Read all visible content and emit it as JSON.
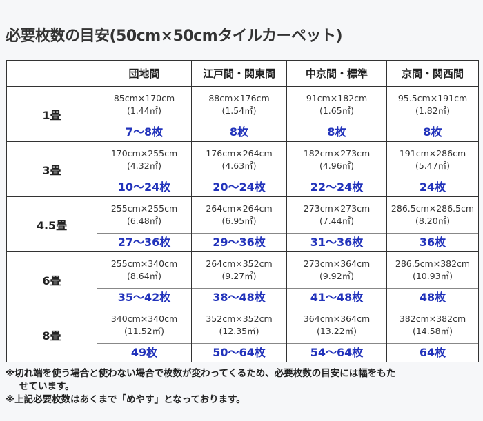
{
  "title": "必要枚数の目安(50cm×50cmタイルカーペット)",
  "columns": [
    "",
    "団地間",
    "江戸間・関東間",
    "中京間・標準",
    "京間・関西間"
  ],
  "rows": [
    {
      "label": "1畳",
      "cells": [
        {
          "size": "85cm×170cm",
          "area": "(1.44㎡)",
          "count": "7～8枚"
        },
        {
          "size": "88cm×176cm",
          "area": "(1.54㎡)",
          "count": "8枚"
        },
        {
          "size": "91cm×182cm",
          "area": "(1.65㎡)",
          "count": "8枚"
        },
        {
          "size": "95.5cm×191cm",
          "area": "(1.82㎡)",
          "count": "8枚"
        }
      ]
    },
    {
      "label": "3畳",
      "cells": [
        {
          "size": "170cm×255cm",
          "area": "(4.32㎡)",
          "count": "10～24枚"
        },
        {
          "size": "176cm×264cm",
          "area": "(4.63㎡)",
          "count": "20～24枚"
        },
        {
          "size": "182cm×273cm",
          "area": "(4.96㎡)",
          "count": "22～24枚"
        },
        {
          "size": "191cm×286cm",
          "area": "(5.47㎡)",
          "count": "24枚"
        }
      ]
    },
    {
      "label": "4.5畳",
      "cells": [
        {
          "size": "255cm×255cm",
          "area": "(6.48㎡)",
          "count": "27～36枚"
        },
        {
          "size": "264cm×264cm",
          "area": "(6.95㎡)",
          "count": "29～36枚"
        },
        {
          "size": "273cm×273cm",
          "area": "(7.44㎡)",
          "count": "31～36枚"
        },
        {
          "size": "286.5cm×286.5cm",
          "area": "(8.20㎡)",
          "count": "36枚"
        }
      ]
    },
    {
      "label": "6畳",
      "cells": [
        {
          "size": "255cm×340cm",
          "area": "(8.64㎡)",
          "count": "35～42枚"
        },
        {
          "size": "264cm×352cm",
          "area": "(9.27㎡)",
          "count": "38～48枚"
        },
        {
          "size": "273cm×364cm",
          "area": "(9.92㎡)",
          "count": "41～48枚"
        },
        {
          "size": "286.5cm×382cm",
          "area": "(10.93㎡)",
          "count": "48枚"
        }
      ]
    },
    {
      "label": "8畳",
      "cells": [
        {
          "size": "340cm×340cm",
          "area": "(11.52㎡)",
          "count": "49枚"
        },
        {
          "size": "352cm×352cm",
          "area": "(12.35㎡)",
          "count": "50～64枚"
        },
        {
          "size": "364cm×364cm",
          "area": "(13.22㎡)",
          "count": "54～64枚"
        },
        {
          "size": "382cm×382cm",
          "area": "(14.58㎡)",
          "count": "64枚"
        }
      ]
    }
  ],
  "notes": [
    "※切れ端を使う場合と使わない場合で枚数が変わってくるため、必要枚数の目安には幅をもた",
    "せています。",
    "※上記必要枚数はあくまで「めやす」となっております。"
  ],
  "colors": {
    "count": "#2233bb"
  }
}
